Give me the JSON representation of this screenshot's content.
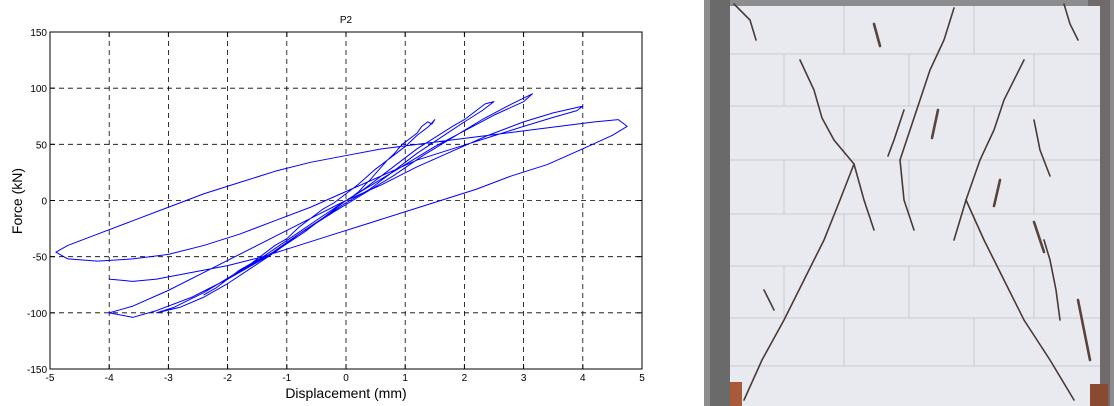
{
  "chart_data": {
    "type": "line",
    "title": "P2",
    "xlabel": "Displacement (mm)",
    "ylabel": "Force (kN)",
    "xlim": [
      -5,
      5
    ],
    "ylim": [
      -150,
      150
    ],
    "xticks": [
      -5,
      -4,
      -3,
      -2,
      -1,
      0,
      1,
      2,
      3,
      4,
      5
    ],
    "yticks": [
      -150,
      -100,
      -50,
      0,
      50,
      100,
      150
    ],
    "grid": true,
    "grid_style": "dashed",
    "line_color": "#0000ff",
    "series": [
      {
        "values": [
          [
            0,
            0
          ],
          [
            0.12,
            4
          ],
          [
            0.22,
            8
          ],
          [
            0.32,
            14
          ],
          [
            0.4,
            18
          ],
          [
            0.5,
            24
          ],
          [
            0.6,
            30
          ],
          [
            0.7,
            36
          ],
          [
            0.82,
            42
          ],
          [
            0.95,
            50
          ],
          [
            1.1,
            56
          ],
          [
            1.2,
            60
          ],
          [
            1.28,
            66
          ],
          [
            1.38,
            70
          ],
          [
            1.45,
            68
          ],
          [
            1.5,
            72
          ],
          [
            1.4,
            66
          ],
          [
            1.2,
            58
          ],
          [
            1.0,
            48
          ],
          [
            0.8,
            40
          ],
          [
            0.5,
            28
          ],
          [
            0.2,
            14
          ],
          [
            0,
            6
          ],
          [
            -0.2,
            -2
          ],
          [
            -0.4,
            -8
          ],
          [
            -0.6,
            -16
          ],
          [
            -0.8,
            -24
          ],
          [
            -1.0,
            -34
          ],
          [
            -1.2,
            -40
          ],
          [
            -1.4,
            -48
          ],
          [
            -1.6,
            -56
          ],
          [
            -1.8,
            -62
          ],
          [
            -2.0,
            -70
          ],
          [
            -2.2,
            -78
          ],
          [
            -2.4,
            -84
          ],
          [
            -2.2,
            -78
          ],
          [
            -1.9,
            -66
          ],
          [
            -1.5,
            -54
          ],
          [
            -1.1,
            -42
          ],
          [
            -0.7,
            -28
          ],
          [
            -0.3,
            -12
          ],
          [
            0,
            0
          ],
          [
            0.3,
            10
          ],
          [
            0.6,
            22
          ],
          [
            0.9,
            34
          ],
          [
            1.2,
            46
          ],
          [
            1.5,
            56
          ],
          [
            1.8,
            66
          ],
          [
            2.0,
            72
          ],
          [
            2.2,
            80
          ],
          [
            2.35,
            86
          ],
          [
            2.5,
            88
          ],
          [
            2.3,
            80
          ],
          [
            2.0,
            70
          ],
          [
            1.6,
            56
          ],
          [
            1.2,
            42
          ],
          [
            0.8,
            26
          ],
          [
            0.4,
            10
          ],
          [
            0,
            -2
          ],
          [
            -0.4,
            -16
          ],
          [
            -0.8,
            -30
          ],
          [
            -1.2,
            -46
          ],
          [
            -1.6,
            -60
          ],
          [
            -2.0,
            -74
          ],
          [
            -2.4,
            -86
          ],
          [
            -2.8,
            -95
          ],
          [
            -3.2,
            -100
          ],
          [
            -2.9,
            -95
          ],
          [
            -2.4,
            -82
          ],
          [
            -1.9,
            -66
          ],
          [
            -1.4,
            -50
          ],
          [
            -0.9,
            -32
          ],
          [
            -0.4,
            -14
          ],
          [
            0,
            0
          ],
          [
            0.5,
            16
          ],
          [
            1.0,
            32
          ],
          [
            1.5,
            48
          ],
          [
            2.0,
            62
          ],
          [
            2.5,
            76
          ],
          [
            3.0,
            88
          ],
          [
            3.15,
            95
          ],
          [
            2.8,
            86
          ],
          [
            2.3,
            72
          ],
          [
            1.8,
            56
          ],
          [
            1.3,
            40
          ],
          [
            0.8,
            22
          ],
          [
            0.3,
            6
          ],
          [
            -0.2,
            -10
          ],
          [
            -0.8,
            -30
          ],
          [
            -1.4,
            -52
          ],
          [
            -2.0,
            -70
          ],
          [
            -2.6,
            -86
          ],
          [
            -3.2,
            -98
          ],
          [
            -3.6,
            -104
          ],
          [
            -4.0,
            -100
          ],
          [
            -3.6,
            -94
          ],
          [
            -3.0,
            -80
          ],
          [
            -2.4,
            -64
          ],
          [
            -1.8,
            -48
          ],
          [
            -1.2,
            -32
          ],
          [
            -0.6,
            -16
          ],
          [
            0,
            0
          ],
          [
            0.6,
            14
          ],
          [
            1.2,
            30
          ],
          [
            1.8,
            44
          ],
          [
            2.4,
            58
          ],
          [
            3.0,
            70
          ],
          [
            3.5,
            78
          ],
          [
            4.0,
            84
          ],
          [
            3.9,
            80
          ],
          [
            3.5,
            74
          ],
          [
            3.0,
            66
          ],
          [
            2.4,
            56
          ],
          [
            1.8,
            46
          ],
          [
            1.2,
            36
          ],
          [
            0.6,
            22
          ],
          [
            0,
            8
          ],
          [
            -0.6,
            -6
          ],
          [
            -1.2,
            -18
          ],
          [
            -1.8,
            -30
          ],
          [
            -2.4,
            -40
          ],
          [
            -3.0,
            -48
          ],
          [
            -3.6,
            -52
          ],
          [
            -4.2,
            -54
          ],
          [
            -4.7,
            -52
          ],
          [
            -4.9,
            -46
          ],
          [
            -4.7,
            -40
          ],
          [
            -4.2,
            -30
          ],
          [
            -3.6,
            -18
          ],
          [
            -3.0,
            -6
          ],
          [
            -2.4,
            6
          ],
          [
            -1.8,
            16
          ],
          [
            -1.2,
            26
          ],
          [
            -0.6,
            34
          ],
          [
            0,
            40
          ],
          [
            0.6,
            46
          ],
          [
            1.2,
            50
          ],
          [
            1.8,
            54
          ],
          [
            2.4,
            58
          ],
          [
            3.0,
            62
          ],
          [
            3.6,
            66
          ],
          [
            4.2,
            70
          ],
          [
            4.6,
            72
          ],
          [
            4.75,
            66
          ],
          [
            4.5,
            58
          ],
          [
            4.0,
            46
          ],
          [
            3.4,
            32
          ],
          [
            2.8,
            22
          ],
          [
            2.2,
            10
          ],
          [
            1.6,
            0
          ],
          [
            1.0,
            -10
          ],
          [
            0.4,
            -20
          ],
          [
            -0.2,
            -30
          ],
          [
            -0.8,
            -40
          ],
          [
            -1.4,
            -50
          ],
          [
            -2.0,
            -58
          ],
          [
            -2.6,
            -64
          ],
          [
            -3.2,
            -70
          ],
          [
            -3.6,
            -72
          ],
          [
            -4.0,
            -70
          ]
        ]
      }
    ]
  },
  "photo": {
    "description_icon": "cracked-masonry-wall-photo",
    "colors": {
      "background": "#8d8d8d",
      "wall": "#e8e9ee",
      "crack": "#4a3a36",
      "ground": "#a85a3a"
    }
  }
}
